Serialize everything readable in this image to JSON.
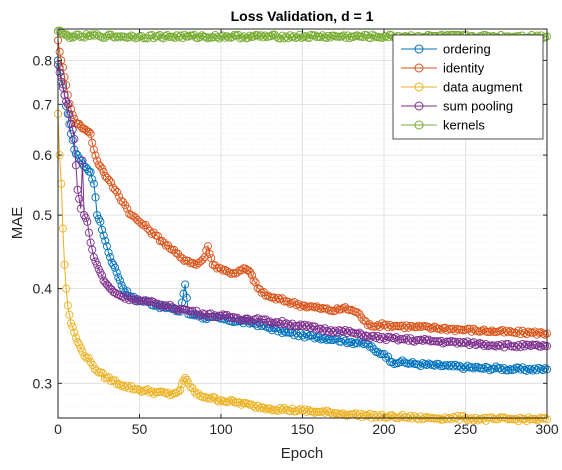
{
  "chart_data": {
    "type": "line",
    "title": "Loss Validation, d = 1",
    "xlabel": "Epoch",
    "ylabel": "MAE",
    "xlim": [
      0,
      300
    ],
    "ylim": [
      0.27,
      0.88
    ],
    "yscale": "log",
    "grid": true,
    "minor_grid": true,
    "legend_position": "top-right",
    "marker": "open-circle",
    "x_ticks": [
      0,
      50,
      100,
      150,
      200,
      250,
      300
    ],
    "y_ticks": [
      0.3,
      0.4,
      0.5,
      0.6,
      0.7,
      0.8
    ],
    "series": [
      {
        "name": "ordering",
        "color": "#0072BD",
        "points": [
          [
            0,
            0.8
          ],
          [
            2,
            0.76
          ],
          [
            4,
            0.72
          ],
          [
            6,
            0.68
          ],
          [
            8,
            0.64
          ],
          [
            10,
            0.61
          ],
          [
            12,
            0.6
          ],
          [
            14,
            0.59
          ],
          [
            16,
            0.58
          ],
          [
            18,
            0.575
          ],
          [
            20,
            0.57
          ],
          [
            22,
            0.55
          ],
          [
            24,
            0.5
          ],
          [
            26,
            0.49
          ],
          [
            28,
            0.47
          ],
          [
            30,
            0.455
          ],
          [
            32,
            0.44
          ],
          [
            34,
            0.43
          ],
          [
            36,
            0.42
          ],
          [
            38,
            0.41
          ],
          [
            40,
            0.4
          ],
          [
            45,
            0.39
          ],
          [
            50,
            0.385
          ],
          [
            55,
            0.385
          ],
          [
            60,
            0.38
          ],
          [
            65,
            0.378
          ],
          [
            70,
            0.376
          ],
          [
            75,
            0.373
          ],
          [
            78,
            0.405
          ],
          [
            80,
            0.37
          ],
          [
            85,
            0.37
          ],
          [
            90,
            0.366
          ],
          [
            100,
            0.365
          ],
          [
            110,
            0.362
          ],
          [
            120,
            0.36
          ],
          [
            130,
            0.355
          ],
          [
            140,
            0.35
          ],
          [
            150,
            0.347
          ],
          [
            160,
            0.345
          ],
          [
            170,
            0.343
          ],
          [
            180,
            0.34
          ],
          [
            190,
            0.338
          ],
          [
            195,
            0.33
          ],
          [
            200,
            0.328
          ],
          [
            205,
            0.32
          ],
          [
            210,
            0.32
          ],
          [
            220,
            0.318
          ],
          [
            230,
            0.317
          ],
          [
            240,
            0.316
          ],
          [
            250,
            0.315
          ],
          [
            260,
            0.314
          ],
          [
            270,
            0.314
          ],
          [
            280,
            0.313
          ],
          [
            290,
            0.313
          ],
          [
            300,
            0.313
          ]
        ]
      },
      {
        "name": "identity",
        "color": "#D95319",
        "points": [
          [
            0,
            0.85
          ],
          [
            2,
            0.8
          ],
          [
            4,
            0.76
          ],
          [
            6,
            0.72
          ],
          [
            8,
            0.69
          ],
          [
            10,
            0.67
          ],
          [
            12,
            0.66
          ],
          [
            14,
            0.655
          ],
          [
            16,
            0.65
          ],
          [
            18,
            0.645
          ],
          [
            20,
            0.64
          ],
          [
            22,
            0.61
          ],
          [
            24,
            0.59
          ],
          [
            26,
            0.58
          ],
          [
            28,
            0.57
          ],
          [
            30,
            0.56
          ],
          [
            35,
            0.54
          ],
          [
            40,
            0.52
          ],
          [
            45,
            0.5
          ],
          [
            50,
            0.49
          ],
          [
            55,
            0.48
          ],
          [
            60,
            0.47
          ],
          [
            65,
            0.46
          ],
          [
            70,
            0.45
          ],
          [
            75,
            0.44
          ],
          [
            80,
            0.435
          ],
          [
            85,
            0.43
          ],
          [
            90,
            0.44
          ],
          [
            92,
            0.455
          ],
          [
            95,
            0.43
          ],
          [
            100,
            0.425
          ],
          [
            105,
            0.42
          ],
          [
            110,
            0.42
          ],
          [
            115,
            0.425
          ],
          [
            118,
            0.42
          ],
          [
            120,
            0.41
          ],
          [
            125,
            0.395
          ],
          [
            130,
            0.39
          ],
          [
            140,
            0.385
          ],
          [
            150,
            0.38
          ],
          [
            160,
            0.377
          ],
          [
            170,
            0.374
          ],
          [
            175,
            0.377
          ],
          [
            180,
            0.375
          ],
          [
            185,
            0.37
          ],
          [
            190,
            0.358
          ],
          [
            200,
            0.358
          ],
          [
            210,
            0.357
          ],
          [
            220,
            0.356
          ],
          [
            230,
            0.355
          ],
          [
            240,
            0.354
          ],
          [
            250,
            0.353
          ],
          [
            260,
            0.352
          ],
          [
            270,
            0.351
          ],
          [
            280,
            0.35
          ],
          [
            290,
            0.35
          ],
          [
            300,
            0.349
          ]
        ]
      },
      {
        "name": "data augment",
        "color": "#EDB120",
        "points": [
          [
            0,
            0.68
          ],
          [
            1,
            0.6
          ],
          [
            2,
            0.55
          ],
          [
            3,
            0.48
          ],
          [
            4,
            0.43
          ],
          [
            5,
            0.4
          ],
          [
            6,
            0.38
          ],
          [
            8,
            0.36
          ],
          [
            10,
            0.35
          ],
          [
            12,
            0.34
          ],
          [
            15,
            0.33
          ],
          [
            20,
            0.32
          ],
          [
            25,
            0.31
          ],
          [
            30,
            0.305
          ],
          [
            40,
            0.298
          ],
          [
            50,
            0.294
          ],
          [
            60,
            0.292
          ],
          [
            70,
            0.29
          ],
          [
            75,
            0.294
          ],
          [
            78,
            0.305
          ],
          [
            80,
            0.3
          ],
          [
            85,
            0.29
          ],
          [
            90,
            0.288
          ],
          [
            100,
            0.285
          ],
          [
            110,
            0.283
          ],
          [
            120,
            0.28
          ],
          [
            130,
            0.278
          ],
          [
            140,
            0.277
          ],
          [
            150,
            0.276
          ],
          [
            160,
            0.275
          ],
          [
            170,
            0.274
          ],
          [
            180,
            0.273
          ],
          [
            190,
            0.272
          ],
          [
            200,
            0.271
          ],
          [
            210,
            0.271
          ],
          [
            220,
            0.27
          ],
          [
            230,
            0.27
          ],
          [
            240,
            0.27
          ],
          [
            250,
            0.27
          ],
          [
            260,
            0.269
          ],
          [
            270,
            0.269
          ],
          [
            280,
            0.269
          ],
          [
            290,
            0.269
          ],
          [
            300,
            0.269
          ]
        ]
      },
      {
        "name": "sum pooling",
        "color": "#7E2F8E",
        "points": [
          [
            0,
            0.79
          ],
          [
            2,
            0.75
          ],
          [
            4,
            0.72
          ],
          [
            6,
            0.7
          ],
          [
            8,
            0.66
          ],
          [
            10,
            0.63
          ],
          [
            12,
            0.54
          ],
          [
            14,
            0.51
          ],
          [
            15,
            0.59
          ],
          [
            16,
            0.5
          ],
          [
            18,
            0.49
          ],
          [
            20,
            0.46
          ],
          [
            22,
            0.44
          ],
          [
            24,
            0.43
          ],
          [
            26,
            0.42
          ],
          [
            28,
            0.41
          ],
          [
            30,
            0.405
          ],
          [
            32,
            0.4
          ],
          [
            35,
            0.395
          ],
          [
            40,
            0.39
          ],
          [
            45,
            0.388
          ],
          [
            50,
            0.386
          ],
          [
            55,
            0.384
          ],
          [
            60,
            0.382
          ],
          [
            65,
            0.38
          ],
          [
            70,
            0.378
          ],
          [
            75,
            0.376
          ],
          [
            80,
            0.374
          ],
          [
            90,
            0.37
          ],
          [
            100,
            0.368
          ],
          [
            110,
            0.366
          ],
          [
            120,
            0.364
          ],
          [
            130,
            0.362
          ],
          [
            140,
            0.36
          ],
          [
            150,
            0.357
          ],
          [
            160,
            0.354
          ],
          [
            170,
            0.352
          ],
          [
            180,
            0.35
          ],
          [
            190,
            0.346
          ],
          [
            200,
            0.344
          ],
          [
            210,
            0.343
          ],
          [
            220,
            0.342
          ],
          [
            230,
            0.341
          ],
          [
            240,
            0.34
          ],
          [
            250,
            0.339
          ],
          [
            260,
            0.338
          ],
          [
            270,
            0.337
          ],
          [
            280,
            0.336
          ],
          [
            290,
            0.336
          ],
          [
            300,
            0.336
          ]
        ]
      },
      {
        "name": "kernels",
        "color": "#77AC30",
        "points": [
          [
            0,
            0.875
          ],
          [
            2,
            0.87
          ],
          [
            4,
            0.865
          ],
          [
            6,
            0.862
          ],
          [
            8,
            0.86
          ],
          [
            10,
            0.86
          ],
          [
            15,
            0.86
          ],
          [
            20,
            0.862
          ],
          [
            25,
            0.862
          ],
          [
            30,
            0.861
          ],
          [
            40,
            0.86
          ],
          [
            50,
            0.86
          ],
          [
            60,
            0.86
          ],
          [
            80,
            0.86
          ],
          [
            100,
            0.86
          ],
          [
            120,
            0.86
          ],
          [
            140,
            0.86
          ],
          [
            160,
            0.86
          ],
          [
            180,
            0.86
          ],
          [
            200,
            0.86
          ],
          [
            220,
            0.86
          ],
          [
            240,
            0.86
          ],
          [
            260,
            0.86
          ],
          [
            280,
            0.86
          ],
          [
            300,
            0.86
          ]
        ]
      }
    ]
  }
}
